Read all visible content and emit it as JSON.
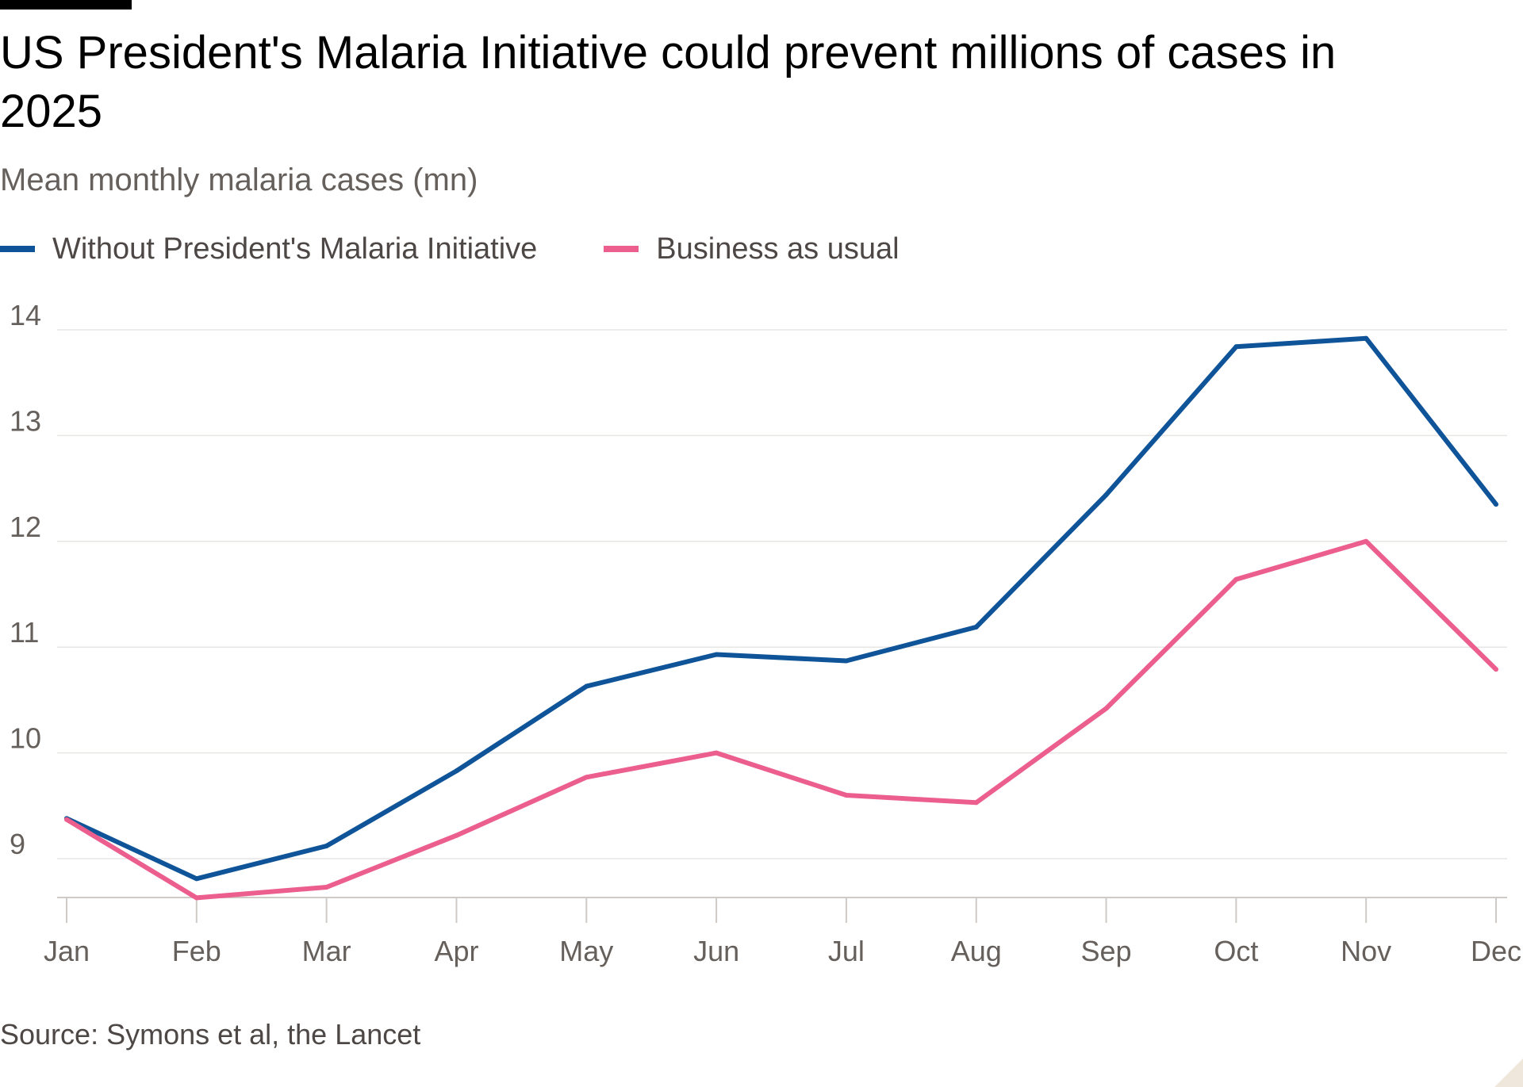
{
  "header": {
    "title": "US President's Malaria Initiative could prevent millions of cases in 2025",
    "subtitle": "Mean monthly malaria cases (mn)"
  },
  "footer": {
    "source": "Source: Symons et al, the Lancet"
  },
  "colors": {
    "series_blue": "#0f5499",
    "series_pink": "#eb5e8d",
    "grid": "#e8e6e3",
    "axis": "#66605c"
  },
  "chart_data": {
    "type": "line",
    "title": "US President's Malaria Initiative could prevent millions of cases in 2025",
    "subtitle": "Mean monthly malaria cases (mn)",
    "xlabel": "",
    "ylabel": "",
    "categories": [
      "Jan",
      "Feb",
      "Mar",
      "Apr",
      "May",
      "Jun",
      "Jul",
      "Aug",
      "Sep",
      "Oct",
      "Nov",
      "Dec"
    ],
    "yticks": [
      9,
      10,
      11,
      12,
      13,
      14
    ],
    "ylim": [
      8.6,
      14.2
    ],
    "grid": true,
    "legend_position": "top-left",
    "series": [
      {
        "name": "Without President's Malaria Initiative",
        "color": "#0f5499",
        "values": [
          9.38,
          8.81,
          9.12,
          9.83,
          10.63,
          10.93,
          10.87,
          11.19,
          12.44,
          13.84,
          13.92,
          12.35
        ]
      },
      {
        "name": "Business as usual",
        "color": "#eb5e8d",
        "values": [
          9.37,
          8.63,
          8.73,
          9.22,
          9.77,
          10.0,
          9.6,
          9.53,
          10.42,
          11.64,
          12.0,
          10.79
        ]
      }
    ],
    "source": "Source: Symons et al, the Lancet"
  }
}
